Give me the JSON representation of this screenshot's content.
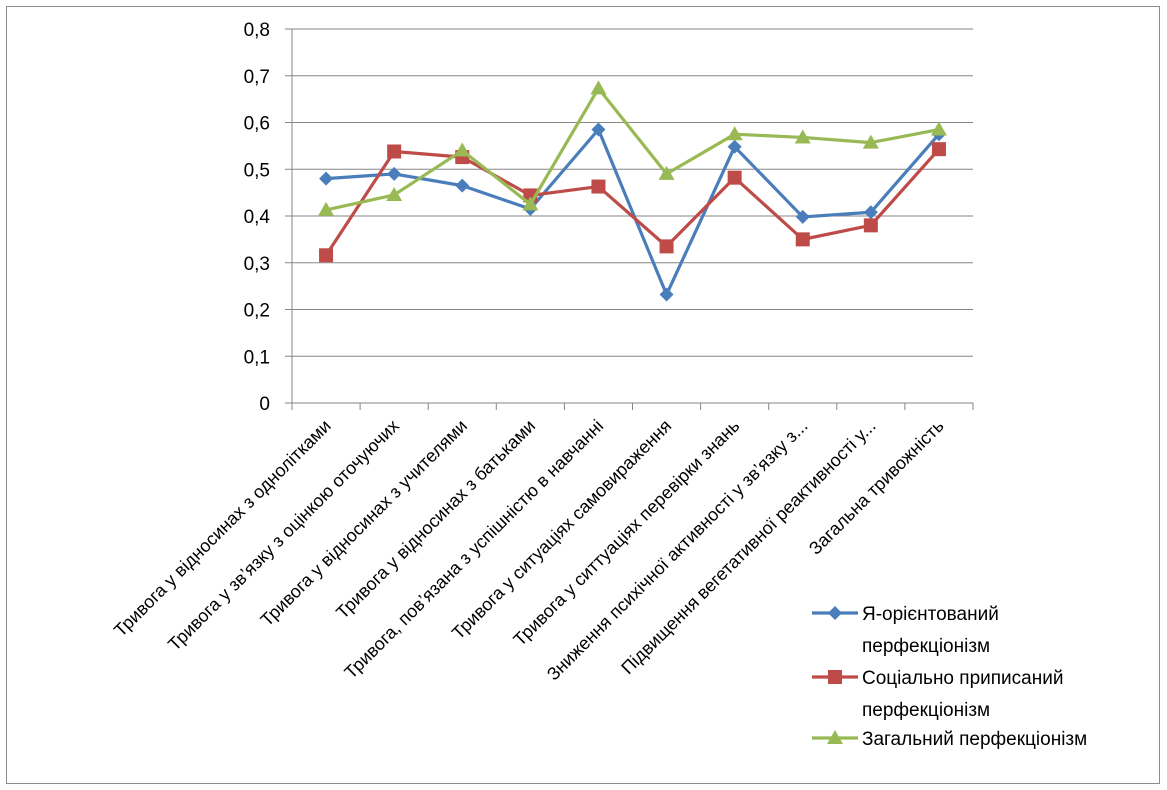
{
  "chart_data": {
    "type": "line",
    "categories": [
      "Тривога у відносинах з однолітками",
      "Тривога у зв’язку з оцінкою оточуючих",
      "Тривога у відносинах з учителями",
      "Тривога у відносинах з батьками",
      "Тривога, пов’язана з успішністю в навчанні",
      "Тривога у ситуаціях самовираження",
      "Тривога у ситтуаціях перевірки знань",
      "Зниження психічної активності у зв’язку з...",
      "Підвищення вегетативної реактивності у...",
      "Загальна тривожність"
    ],
    "y_tick_labels": [
      "0",
      "0,1",
      "0,2",
      "0,3",
      "0,4",
      "0,5",
      "0,6",
      "0,7",
      "0,8"
    ],
    "ylim": [
      0,
      0.8
    ],
    "grid": true,
    "legend_position": "bottom-right",
    "series": [
      {
        "name_lines": [
          "Я-орієнтований",
          "перфекціонізм"
        ],
        "color": "#4a7ebb",
        "marker": "diamond",
        "values": [
          0.48,
          0.49,
          0.465,
          0.415,
          0.585,
          0.232,
          0.548,
          0.398,
          0.408,
          0.575
        ]
      },
      {
        "name_lines": [
          "Соціально приписаний",
          "перфекціонізм"
        ],
        "color": "#be4b48",
        "marker": "square",
        "values": [
          0.316,
          0.538,
          0.526,
          0.444,
          0.463,
          0.335,
          0.482,
          0.35,
          0.38,
          0.543
        ]
      },
      {
        "name_lines": [
          "Загальний перфекціонізм"
        ],
        "color": "#98b954",
        "marker": "triangle",
        "values": [
          0.413,
          0.445,
          0.54,
          0.425,
          0.673,
          0.49,
          0.575,
          0.568,
          0.557,
          0.585
        ]
      }
    ]
  }
}
